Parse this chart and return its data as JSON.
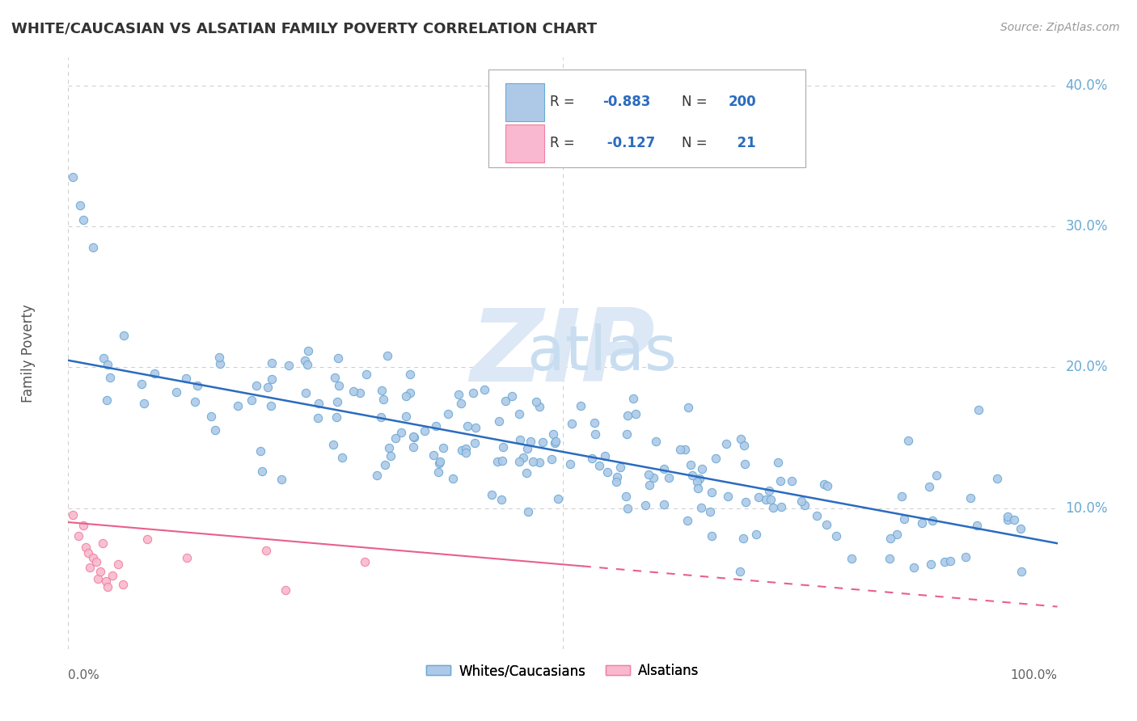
{
  "title": "WHITE/CAUCASIAN VS ALSATIAN FAMILY POVERTY CORRELATION CHART",
  "source_text": "Source: ZipAtlas.com",
  "ylabel": "Family Poverty",
  "xlim": [
    0,
    1
  ],
  "ylim": [
    0,
    0.42
  ],
  "ytick_positions": [
    0.1,
    0.2,
    0.3,
    0.4
  ],
  "ytick_labels": [
    "10.0%",
    "20.0%",
    "30.0%",
    "40.0%"
  ],
  "blue_R": "-0.883",
  "blue_N": "200",
  "pink_R": "-0.127",
  "pink_N": "21",
  "blue_scatter_color": "#aec9e8",
  "blue_edge_color": "#6aaad4",
  "pink_scatter_color": "#f9b8cf",
  "pink_edge_color": "#f080a0",
  "line_blue_color": "#2b6bbf",
  "line_pink_color": "#e8608a",
  "title_color": "#333333",
  "source_color": "#999999",
  "legend_label_blue": "Whites/Caucasians",
  "legend_label_pink": "Alsatians",
  "background_color": "#ffffff",
  "grid_color": "#cccccc",
  "blue_line_start_y": 0.205,
  "blue_line_end_y": 0.075,
  "pink_line_start_y": 0.09,
  "pink_line_end_y": 0.06,
  "watermark_zip_color": "#dce8f5",
  "watermark_atlas_color": "#c8ddf0"
}
